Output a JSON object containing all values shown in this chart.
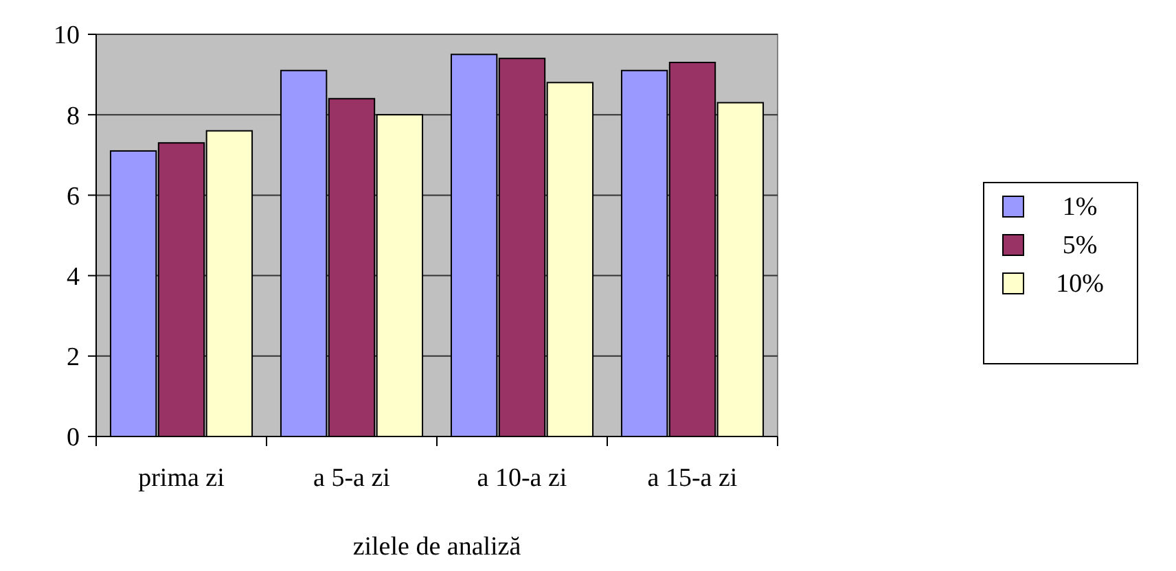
{
  "chart_data": {
    "type": "bar",
    "xlabel": "zilele de analiză",
    "categories": [
      "prima zi",
      "a 5-a zi",
      "a 10-a zi",
      "a 15-a zi"
    ],
    "series": [
      {
        "name": "1%",
        "color": "#9999ff",
        "values": [
          7.1,
          9.1,
          9.5,
          9.1
        ]
      },
      {
        "name": "5%",
        "color": "#993366",
        "values": [
          7.3,
          8.4,
          9.4,
          9.3
        ]
      },
      {
        "name": "10%",
        "color": "#ffffcc",
        "values": [
          7.6,
          8.0,
          8.8,
          8.3
        ]
      }
    ],
    "ylim": [
      0,
      10
    ],
    "yticks": [
      0,
      2,
      4,
      6,
      8,
      10
    ],
    "grid": "y",
    "legend": "right"
  }
}
